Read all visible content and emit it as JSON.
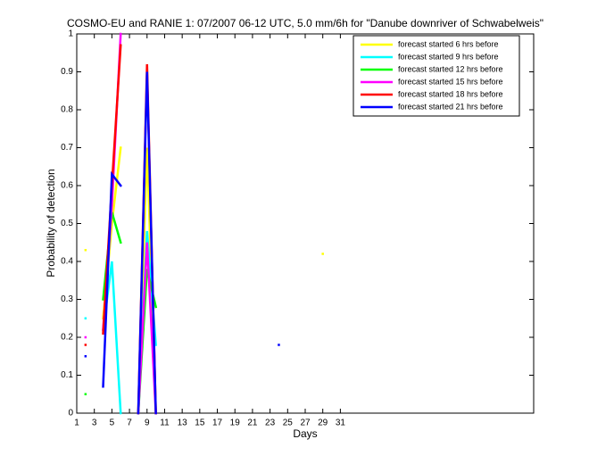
{
  "chart_data": {
    "type": "line",
    "title": "COSMO-EU and RANIE 1: 07/2007 06-12 UTC, 5.0 mm/6h for \"Danube downriver of Schwabelweis\"",
    "xlabel": "Days",
    "ylabel": "Probability of detection",
    "x": [
      1,
      2,
      3,
      4,
      5,
      6,
      7,
      8,
      9,
      10,
      11,
      12,
      13,
      14,
      15,
      16,
      17,
      18,
      19,
      20,
      21,
      22,
      23,
      24,
      25,
      26,
      27,
      28,
      29,
      30,
      31
    ],
    "xlim": [
      1,
      53
    ],
    "xticks": [
      1,
      3,
      5,
      7,
      9,
      11,
      13,
      15,
      17,
      19,
      21,
      23,
      25,
      27,
      29,
      31
    ],
    "ylim": [
      0,
      1
    ],
    "yticks": [
      0,
      0.1,
      0.2,
      0.3,
      0.4,
      0.5,
      0.6,
      0.7,
      0.8,
      0.9,
      1
    ],
    "legend_position": "top-right",
    "series": [
      {
        "name": "forecast started 6 hrs before",
        "color": "#ffff00",
        "values": [
          null,
          0.43,
          null,
          0.25,
          0.5,
          0.7,
          null,
          0,
          0.7,
          0,
          null,
          null,
          null,
          null,
          null,
          null,
          null,
          null,
          null,
          null,
          null,
          null,
          null,
          null,
          null,
          null,
          null,
          null,
          0.42,
          null,
          null
        ]
      },
      {
        "name": "forecast started 9 hrs before",
        "color": "#00ffff",
        "values": [
          null,
          0.25,
          null,
          0.22,
          0.4,
          0,
          null,
          0,
          0.48,
          0.18,
          null,
          null,
          null,
          null,
          null,
          null,
          null,
          null,
          null,
          null,
          null,
          null,
          null,
          null,
          null,
          null,
          null,
          null,
          null,
          null,
          null
        ]
      },
      {
        "name": "forecast started 12 hrs before",
        "color": "#00ff00",
        "values": [
          null,
          0.05,
          null,
          0.3,
          0.53,
          0.45,
          null,
          0,
          0.38,
          0.28,
          null,
          null,
          null,
          null,
          null,
          null,
          null,
          null,
          null,
          null,
          null,
          null,
          null,
          null,
          null,
          null,
          null,
          null,
          null,
          null,
          null
        ]
      },
      {
        "name": "forecast started 15 hrs before",
        "color": "#ff00ff",
        "values": [
          null,
          0.2,
          null,
          0.22,
          0.55,
          1,
          null,
          0,
          0.45,
          0,
          null,
          null,
          null,
          null,
          null,
          null,
          null,
          null,
          null,
          null,
          null,
          null,
          null,
          null,
          null,
          null,
          null,
          null,
          null,
          null,
          null
        ]
      },
      {
        "name": "forecast started 18 hrs before",
        "color": "#ff0000",
        "values": [
          null,
          0.18,
          null,
          0.21,
          0.6,
          0.97,
          null,
          0,
          0.92,
          0,
          null,
          null,
          null,
          null,
          null,
          null,
          null,
          null,
          null,
          null,
          null,
          null,
          null,
          null,
          null,
          null,
          null,
          null,
          null,
          null,
          null
        ]
      },
      {
        "name": "forecast started 21 hrs before",
        "color": "#0000ff",
        "values": [
          null,
          0.15,
          null,
          0.07,
          0.63,
          0.6,
          null,
          0,
          0.9,
          0,
          null,
          null,
          null,
          null,
          null,
          null,
          null,
          null,
          null,
          null,
          null,
          null,
          null,
          0.18,
          null,
          null,
          null,
          null,
          null,
          null,
          null
        ]
      }
    ]
  }
}
